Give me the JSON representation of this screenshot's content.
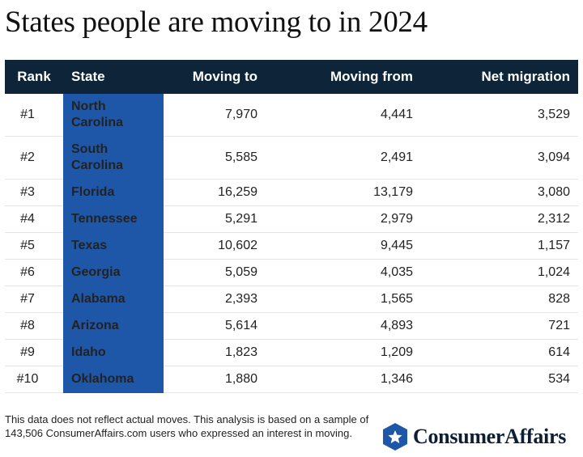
{
  "title": "States people are moving to in 2024",
  "table": {
    "headers": {
      "rank": "Rank",
      "state": "State",
      "moving_to": "Moving to",
      "moving_from": "Moving from",
      "net_migration": "Net migration"
    },
    "rows": [
      {
        "rank": "#1",
        "state": "North Carolina",
        "moving_to": "7,970",
        "moving_from": "4,441",
        "net": "3,529"
      },
      {
        "rank": "#2",
        "state": "South Carolina",
        "moving_to": "5,585",
        "moving_from": "2,491",
        "net": "3,094"
      },
      {
        "rank": "#3",
        "state": "Florida",
        "moving_to": "16,259",
        "moving_from": "13,179",
        "net": "3,080"
      },
      {
        "rank": "#4",
        "state": "Tennessee",
        "moving_to": "5,291",
        "moving_from": "2,979",
        "net": "2,312"
      },
      {
        "rank": "#5",
        "state": "Texas",
        "moving_to": "10,602",
        "moving_from": "9,445",
        "net": "1,157"
      },
      {
        "rank": "#6",
        "state": "Georgia",
        "moving_to": "5,059",
        "moving_from": "4,035",
        "net": "1,024"
      },
      {
        "rank": "#7",
        "state": "Alabama",
        "moving_to": "2,393",
        "moving_from": "1,565",
        "net": "828"
      },
      {
        "rank": "#8",
        "state": "Arizona",
        "moving_to": "5,614",
        "moving_from": "4,893",
        "net": "721"
      },
      {
        "rank": "#9",
        "state": "Idaho",
        "moving_to": "1,823",
        "moving_from": "1,209",
        "net": "614"
      },
      {
        "rank": "#10",
        "state": "Oklahoma",
        "moving_to": "1,880",
        "moving_from": "1,346",
        "net": "534"
      }
    ]
  },
  "footnote": "This data does not reflect actual moves. This analysis is based on a sample of 143,506 ConsumerAffairs.com users who expressed an interest in moving.",
  "brand": {
    "name": "ConsumerAffairs",
    "logo_icon": "star-shield-icon"
  },
  "colors": {
    "header_bg": "#0e2438",
    "state_column_bg": "#1f57a8",
    "shield": "#1f57a8"
  }
}
